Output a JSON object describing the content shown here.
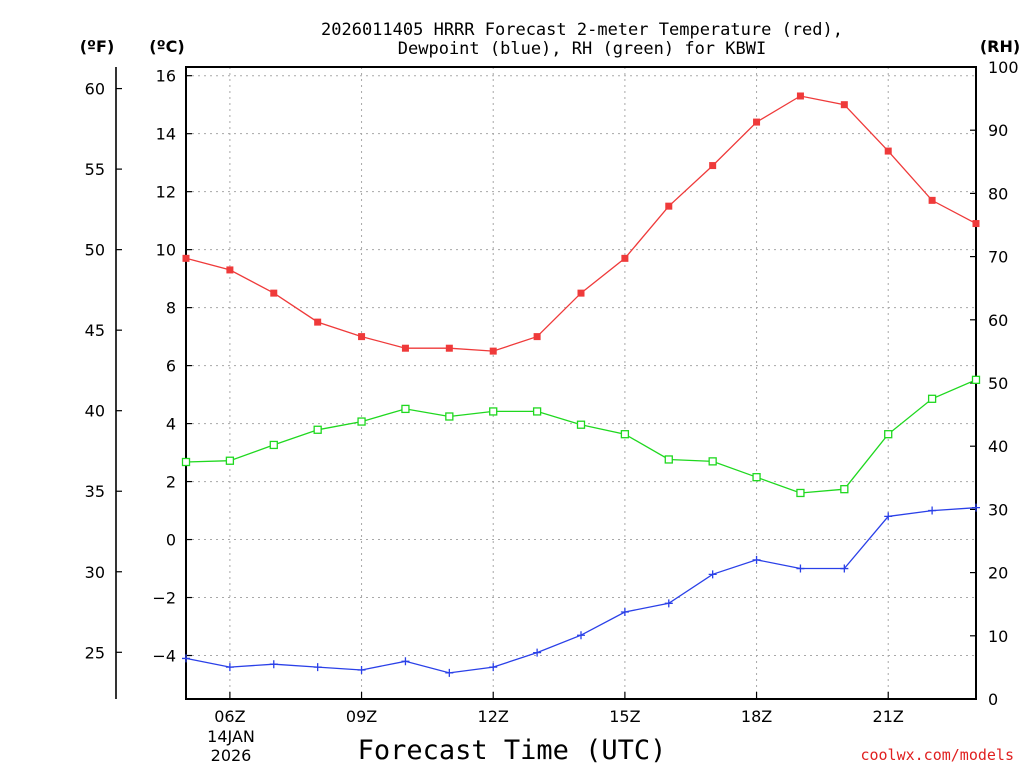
{
  "chart_data": {
    "type": "line",
    "title_line1": "2026011405 HRRR Forecast 2-meter Temperature (red),",
    "title_line2": "Dewpoint (blue), RH (green) for KBWI",
    "xlabel": "Forecast Time (UTC)",
    "watermark": "coolwx.com/models",
    "units": {
      "f": "(ºF)",
      "c": "(ºC)",
      "rh": "(RH)"
    },
    "x_start_hour": 5,
    "xlim": [
      5,
      23
    ],
    "x_ticks": [
      {
        "hour": 6,
        "label": "06Z"
      },
      {
        "hour": 9,
        "label": "09Z"
      },
      {
        "hour": 12,
        "label": "12Z"
      },
      {
        "hour": 15,
        "label": "15Z"
      },
      {
        "hour": 18,
        "label": "18Z"
      },
      {
        "hour": 21,
        "label": "21Z"
      }
    ],
    "date_label": [
      "14JAN",
      "2026"
    ],
    "ylim_c": [
      -5.5,
      16.3
    ],
    "yticks_c": [
      -4,
      -2,
      0,
      2,
      4,
      6,
      8,
      10,
      12,
      14,
      16
    ],
    "yticks_f": [
      25,
      30,
      35,
      40,
      45,
      50,
      55,
      60
    ],
    "ylim_rh": [
      0,
      100
    ],
    "yticks_rh": [
      0,
      10,
      20,
      30,
      40,
      50,
      60,
      70,
      80,
      90,
      100
    ],
    "series": [
      {
        "name": "Temperature",
        "axis": "c",
        "color": "#ef3a3a",
        "marker": "filled-square",
        "values": [
          9.7,
          9.3,
          8.5,
          7.5,
          7.0,
          6.6,
          6.6,
          6.5,
          7.0,
          8.5,
          9.7,
          11.5,
          12.9,
          14.4,
          15.3,
          15.0,
          13.4,
          11.7,
          10.9
        ]
      },
      {
        "name": "Dewpoint",
        "axis": "c",
        "color": "#2a40e8",
        "marker": "plus",
        "values": [
          -4.1,
          -4.4,
          -4.3,
          -4.4,
          -4.5,
          -4.2,
          -4.6,
          -4.4,
          -3.9,
          -3.3,
          -2.5,
          -2.2,
          -1.2,
          -0.7,
          -1.0,
          -1.0,
          0.8,
          1.0,
          1.1
        ]
      },
      {
        "name": "RH",
        "axis": "rh",
        "color": "#1fd81f",
        "marker": "open-square",
        "values": [
          37.5,
          37.7,
          40.2,
          42.6,
          43.9,
          45.9,
          44.7,
          45.5,
          45.5,
          43.4,
          41.9,
          37.9,
          37.6,
          35.1,
          32.6,
          33.2,
          41.9,
          47.5,
          50.5
        ]
      }
    ]
  }
}
